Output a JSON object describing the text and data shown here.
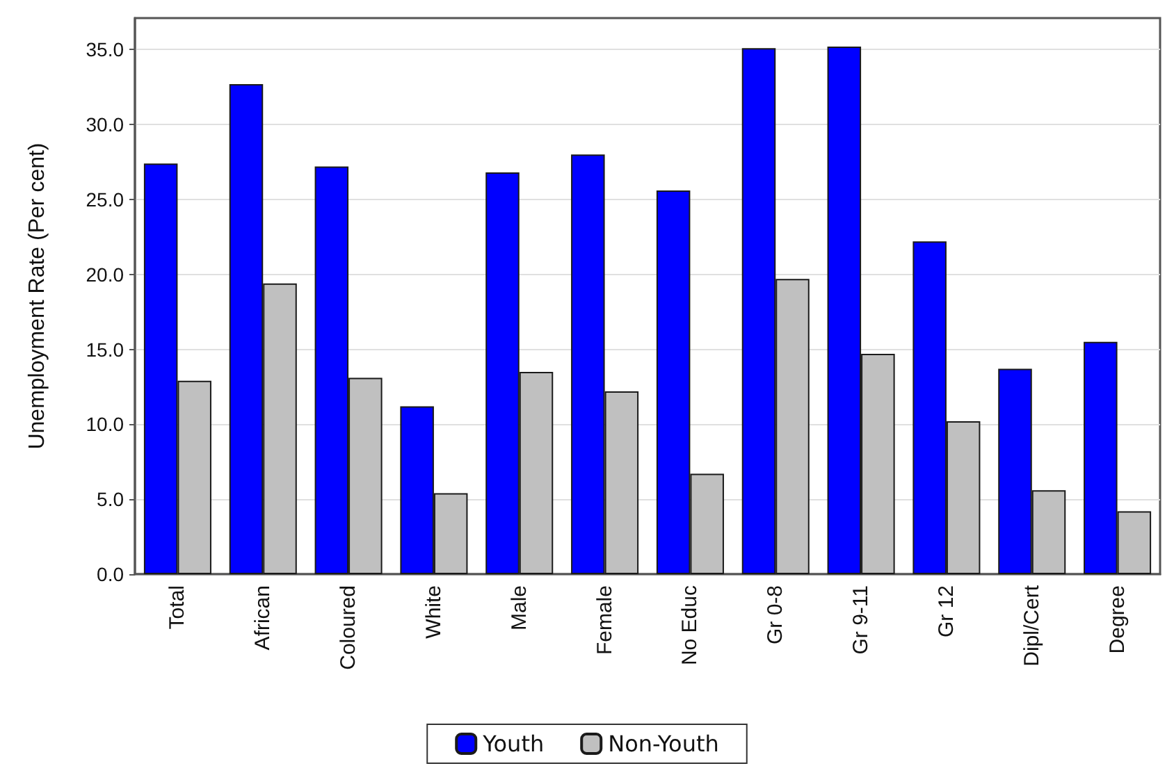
{
  "chart_data": {
    "type": "bar",
    "ylabel": "Unemployment Rate (Per cent)",
    "categories": [
      "Total",
      "African",
      "Coloured",
      "White",
      "Male",
      "Female",
      "No Educ",
      "Gr 0-8",
      "Gr 9-11",
      "Gr 12",
      "Dipl/Cert",
      "Degree"
    ],
    "series": [
      {
        "name": "Youth",
        "color": "#0000ff",
        "values": [
          27.4,
          32.7,
          27.2,
          11.2,
          26.8,
          28.0,
          25.6,
          35.1,
          35.2,
          22.2,
          13.7,
          15.5
        ]
      },
      {
        "name": "Non-Youth",
        "color": "#c0c0c0",
        "values": [
          12.9,
          19.4,
          13.1,
          5.4,
          13.5,
          12.2,
          6.7,
          19.7,
          14.7,
          10.2,
          5.6,
          4.2
        ]
      }
    ],
    "ylim": [
      0,
      37.1
    ],
    "yticks": [
      {
        "value": 0,
        "label": "0.0"
      },
      {
        "value": 5,
        "label": "5.0"
      },
      {
        "value": 10,
        "label": "10.0"
      },
      {
        "value": 15,
        "label": "15.0"
      },
      {
        "value": 20,
        "label": "20.0"
      },
      {
        "value": 25,
        "label": "25.0"
      },
      {
        "value": 30,
        "label": "30.0"
      },
      {
        "value": 35,
        "label": "35.0"
      }
    ],
    "grid": "y",
    "legend": "bottom"
  }
}
